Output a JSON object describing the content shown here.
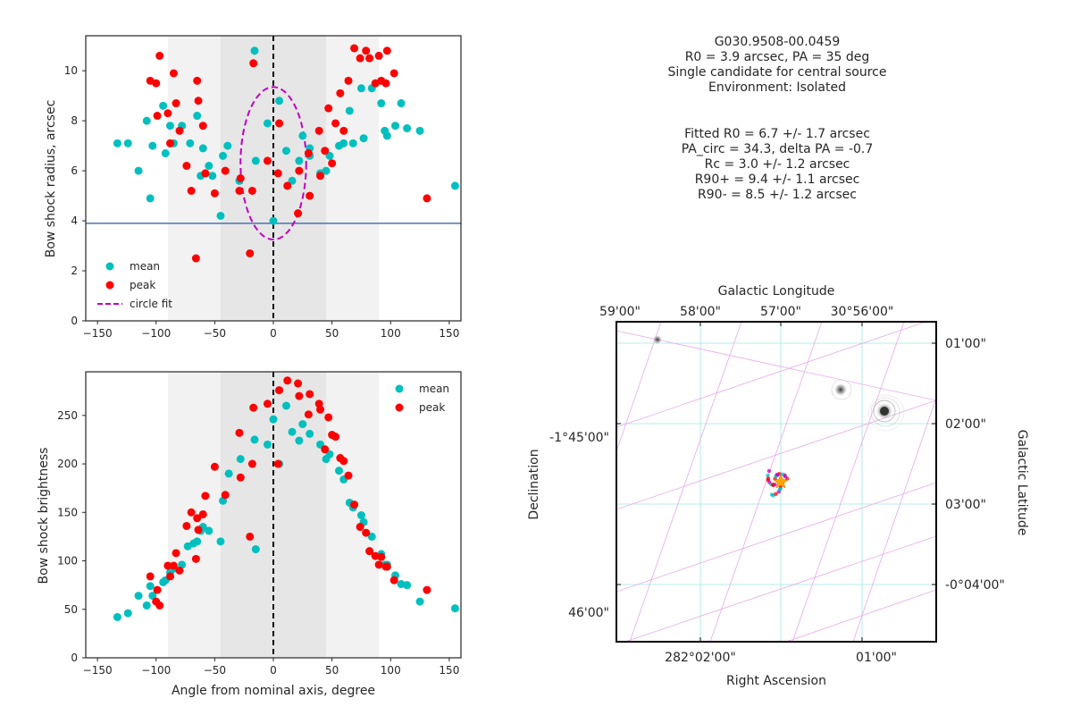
{
  "info_header": [
    "G030.9508-00.0459",
    "R0 = 3.9 arcsec, PA = 35 deg",
    "Single candidate for central source",
    "Environment: Isolated"
  ],
  "info_fit": [
    "Fitted R0 = 6.7 +/- 1.7 arcsec",
    "PA_circ = 34.3, delta PA = -0.7",
    "Rc = 3.0 +/- 1.2 arcsec",
    "R90+ = 9.4 +/- 1.1 arcsec",
    "R90- = 8.5 +/- 1.2 arcsec"
  ],
  "colors": {
    "mean": "#00bfbf",
    "peak": "#ff0000",
    "fit": "#bf00bf",
    "r0line": "#4c72b0"
  },
  "chart_data": [
    {
      "type": "scatter",
      "ylabel": "Bow shock radius, arcsec",
      "xlim": [
        -160,
        160
      ],
      "ylim": [
        0,
        11.4
      ],
      "xticks": [
        -150,
        -100,
        -50,
        0,
        50,
        100,
        150
      ],
      "yticks": [
        0,
        2,
        4,
        6,
        8,
        10
      ],
      "shaded_bands": [
        {
          "x": [
            -90,
            90
          ],
          "shade": "light"
        },
        {
          "x": [
            -45,
            45
          ],
          "shade": "medium"
        }
      ],
      "hline": 3.9,
      "vline": 0,
      "legend": {
        "position": "lower-left",
        "entries": [
          "mean",
          "peak",
          "circle fit"
        ]
      },
      "series": [
        {
          "name": "mean",
          "points": [
            [
              -133,
              7.1
            ],
            [
              -124,
              7.1
            ],
            [
              -115,
              6.0
            ],
            [
              -108,
              8.0
            ],
            [
              -105,
              4.9
            ],
            [
              -103,
              7.0
            ],
            [
              -94,
              8.6
            ],
            [
              -92,
              6.7
            ],
            [
              -88,
              7.8
            ],
            [
              -85,
              7.1
            ],
            [
              -78,
              7.8
            ],
            [
              -71,
              7.1
            ],
            [
              -65,
              8.2
            ],
            [
              -62,
              5.8
            ],
            [
              -60,
              6.9
            ],
            [
              -55,
              6.2
            ],
            [
              -52,
              5.8
            ],
            [
              -45,
              4.2
            ],
            [
              -43,
              6.6
            ],
            [
              -39,
              7.0
            ],
            [
              -29,
              5.6
            ],
            [
              -16,
              10.8
            ],
            [
              -15,
              6.4
            ],
            [
              -5,
              7.9
            ],
            [
              0,
              4.0
            ],
            [
              5,
              8.8
            ],
            [
              11,
              6.8
            ],
            [
              16,
              5.6
            ],
            [
              22,
              6.4
            ],
            [
              25,
              7.4
            ],
            [
              31,
              6.9
            ],
            [
              31,
              6.6
            ],
            [
              40,
              5.9
            ],
            [
              45,
              6.0
            ],
            [
              48,
              6.6
            ],
            [
              56,
              7.0
            ],
            [
              60,
              7.1
            ],
            [
              65,
              8.4
            ],
            [
              68,
              7.1
            ],
            [
              75,
              9.3
            ],
            [
              77,
              7.3
            ],
            [
              84,
              9.3
            ],
            [
              92,
              8.7
            ],
            [
              95,
              7.6
            ],
            [
              97,
              7.4
            ],
            [
              104,
              7.8
            ],
            [
              109,
              8.7
            ],
            [
              114,
              7.7
            ],
            [
              125,
              7.6
            ],
            [
              155,
              5.4
            ]
          ]
        },
        {
          "name": "peak",
          "points": [
            [
              -105,
              9.6
            ],
            [
              -100,
              9.5
            ],
            [
              -99,
              8.2
            ],
            [
              -97,
              10.6
            ],
            [
              -90,
              8.3
            ],
            [
              -88,
              7.1
            ],
            [
              -85,
              9.9
            ],
            [
              -83,
              8.7
            ],
            [
              -80,
              7.6
            ],
            [
              -74,
              6.2
            ],
            [
              -70,
              5.2
            ],
            [
              -66,
              2.5
            ],
            [
              -65,
              9.6
            ],
            [
              -64,
              8.8
            ],
            [
              -60,
              7.8
            ],
            [
              -58,
              5.9
            ],
            [
              -50,
              5.1
            ],
            [
              -41,
              6.0
            ],
            [
              -29,
              5.2
            ],
            [
              -28,
              5.7
            ],
            [
              -20,
              2.7
            ],
            [
              -18,
              5.2
            ],
            [
              -17,
              10.3
            ],
            [
              -5,
              6.4
            ],
            [
              4,
              5.9
            ],
            [
              5,
              7.9
            ],
            [
              12,
              5.4
            ],
            [
              21,
              4.3
            ],
            [
              22,
              6.0
            ],
            [
              30,
              6.7
            ],
            [
              31,
              5.0
            ],
            [
              39,
              7.6
            ],
            [
              40,
              5.8
            ],
            [
              44,
              6.8
            ],
            [
              47,
              8.5
            ],
            [
              50,
              6.3
            ],
            [
              53,
              7.9
            ],
            [
              57,
              9.1
            ],
            [
              60,
              7.6
            ],
            [
              64,
              9.6
            ],
            [
              69,
              10.9
            ],
            [
              74,
              10.5
            ],
            [
              79,
              10.8
            ],
            [
              82,
              10.5
            ],
            [
              87,
              9.5
            ],
            [
              90,
              10.6
            ],
            [
              92,
              9.6
            ],
            [
              96,
              9.5
            ],
            [
              97,
              10.8
            ],
            [
              103,
              9.9
            ],
            [
              131,
              4.9
            ]
          ]
        }
      ],
      "circle_fit": {
        "center": [
          0,
          6.3
        ],
        "x_half_width": 28,
        "y_half_height": 3.05
      }
    },
    {
      "type": "scatter",
      "xlabel": "Angle from nominal axis, degree",
      "ylabel": "Bow shock brightness",
      "xlim": [
        -160,
        160
      ],
      "ylim": [
        0,
        295
      ],
      "xticks": [
        -150,
        -100,
        -50,
        0,
        50,
        100,
        150
      ],
      "yticks": [
        0,
        50,
        100,
        150,
        200,
        250
      ],
      "shaded_bands": [
        {
          "x": [
            -90,
            90
          ],
          "shade": "light"
        },
        {
          "x": [
            -45,
            45
          ],
          "shade": "medium"
        }
      ],
      "vline": 0,
      "legend": {
        "position": "upper-right",
        "entries": [
          "mean",
          "peak"
        ]
      },
      "series": [
        {
          "name": "mean",
          "points": [
            [
              -133,
              42
            ],
            [
              -124,
              46
            ],
            [
              -115,
              64
            ],
            [
              -108,
              54
            ],
            [
              -105,
              74
            ],
            [
              -103,
              64
            ],
            [
              -94,
              78
            ],
            [
              -92,
              80
            ],
            [
              -88,
              88
            ],
            [
              -85,
              92
            ],
            [
              -78,
              96
            ],
            [
              -73,
              115
            ],
            [
              -68,
              118
            ],
            [
              -65,
              120
            ],
            [
              -62,
              131
            ],
            [
              -60,
              135
            ],
            [
              -55,
              131
            ],
            [
              -45,
              120
            ],
            [
              -43,
              162
            ],
            [
              -38,
              190
            ],
            [
              -28,
              205
            ],
            [
              -16,
              225
            ],
            [
              -15,
              112
            ],
            [
              -5,
              220
            ],
            [
              0,
              246
            ],
            [
              5,
              200
            ],
            [
              11,
              260
            ],
            [
              16,
              233
            ],
            [
              22,
              224
            ],
            [
              25,
              241
            ],
            [
              31,
              231
            ],
            [
              40,
              220
            ],
            [
              45,
              205
            ],
            [
              48,
              210
            ],
            [
              56,
              193
            ],
            [
              60,
              184
            ],
            [
              65,
              160
            ],
            [
              68,
              155
            ],
            [
              75,
              147
            ],
            [
              77,
              140
            ],
            [
              84,
              125
            ],
            [
              92,
              107
            ],
            [
              95,
              96
            ],
            [
              97,
              96
            ],
            [
              104,
              85
            ],
            [
              109,
              76
            ],
            [
              114,
              75
            ],
            [
              125,
              58
            ],
            [
              155,
              51
            ]
          ]
        },
        {
          "name": "peak",
          "points": [
            [
              -105,
              84
            ],
            [
              -100,
              58
            ],
            [
              -99,
              70
            ],
            [
              -97,
              54
            ],
            [
              -90,
              95
            ],
            [
              -88,
              84
            ],
            [
              -85,
              95
            ],
            [
              -83,
              108
            ],
            [
              -80,
              90
            ],
            [
              -74,
              136
            ],
            [
              -70,
              150
            ],
            [
              -66,
              102
            ],
            [
              -65,
              144
            ],
            [
              -64,
              132
            ],
            [
              -60,
              148
            ],
            [
              -58,
              167
            ],
            [
              -50,
              197
            ],
            [
              -41,
              168
            ],
            [
              -29,
              232
            ],
            [
              -28,
              186
            ],
            [
              -20,
              125
            ],
            [
              -18,
              200
            ],
            [
              -17,
              258
            ],
            [
              -5,
              262
            ],
            [
              4,
              200
            ],
            [
              5,
              276
            ],
            [
              12,
              286
            ],
            [
              21,
              283
            ],
            [
              22,
              270
            ],
            [
              30,
              251
            ],
            [
              31,
              272
            ],
            [
              39,
              262
            ],
            [
              40,
              256
            ],
            [
              44,
              215
            ],
            [
              47,
              248
            ],
            [
              50,
              230
            ],
            [
              53,
              228
            ],
            [
              57,
              206
            ],
            [
              60,
              203
            ],
            [
              64,
              188
            ],
            [
              69,
              158
            ],
            [
              74,
              135
            ],
            [
              79,
              129
            ],
            [
              82,
              110
            ],
            [
              87,
              105
            ],
            [
              90,
              96
            ],
            [
              92,
              104
            ],
            [
              96,
              94
            ],
            [
              97,
              94
            ],
            [
              103,
              80
            ],
            [
              131,
              70
            ]
          ]
        }
      ]
    },
    {
      "type": "image",
      "top_axis_label": "Galactic Longitude",
      "top_ticks": [
        "59'00\"",
        "58'00\"",
        "57'00\"",
        "30°56'00\""
      ],
      "right_axis_label": "Galactic Latitude",
      "right_ticks": [
        "01'00\"",
        "02'00\"",
        "03'00\"",
        "-0°04'00\""
      ],
      "left_axis_label": "Declination",
      "left_ticks": [
        "-1°45'00\"",
        "46'00\""
      ],
      "bottom_axis_label": "Right Ascension",
      "bottom_ticks": [
        "282°02'00\"",
        "01'00\""
      ]
    }
  ]
}
